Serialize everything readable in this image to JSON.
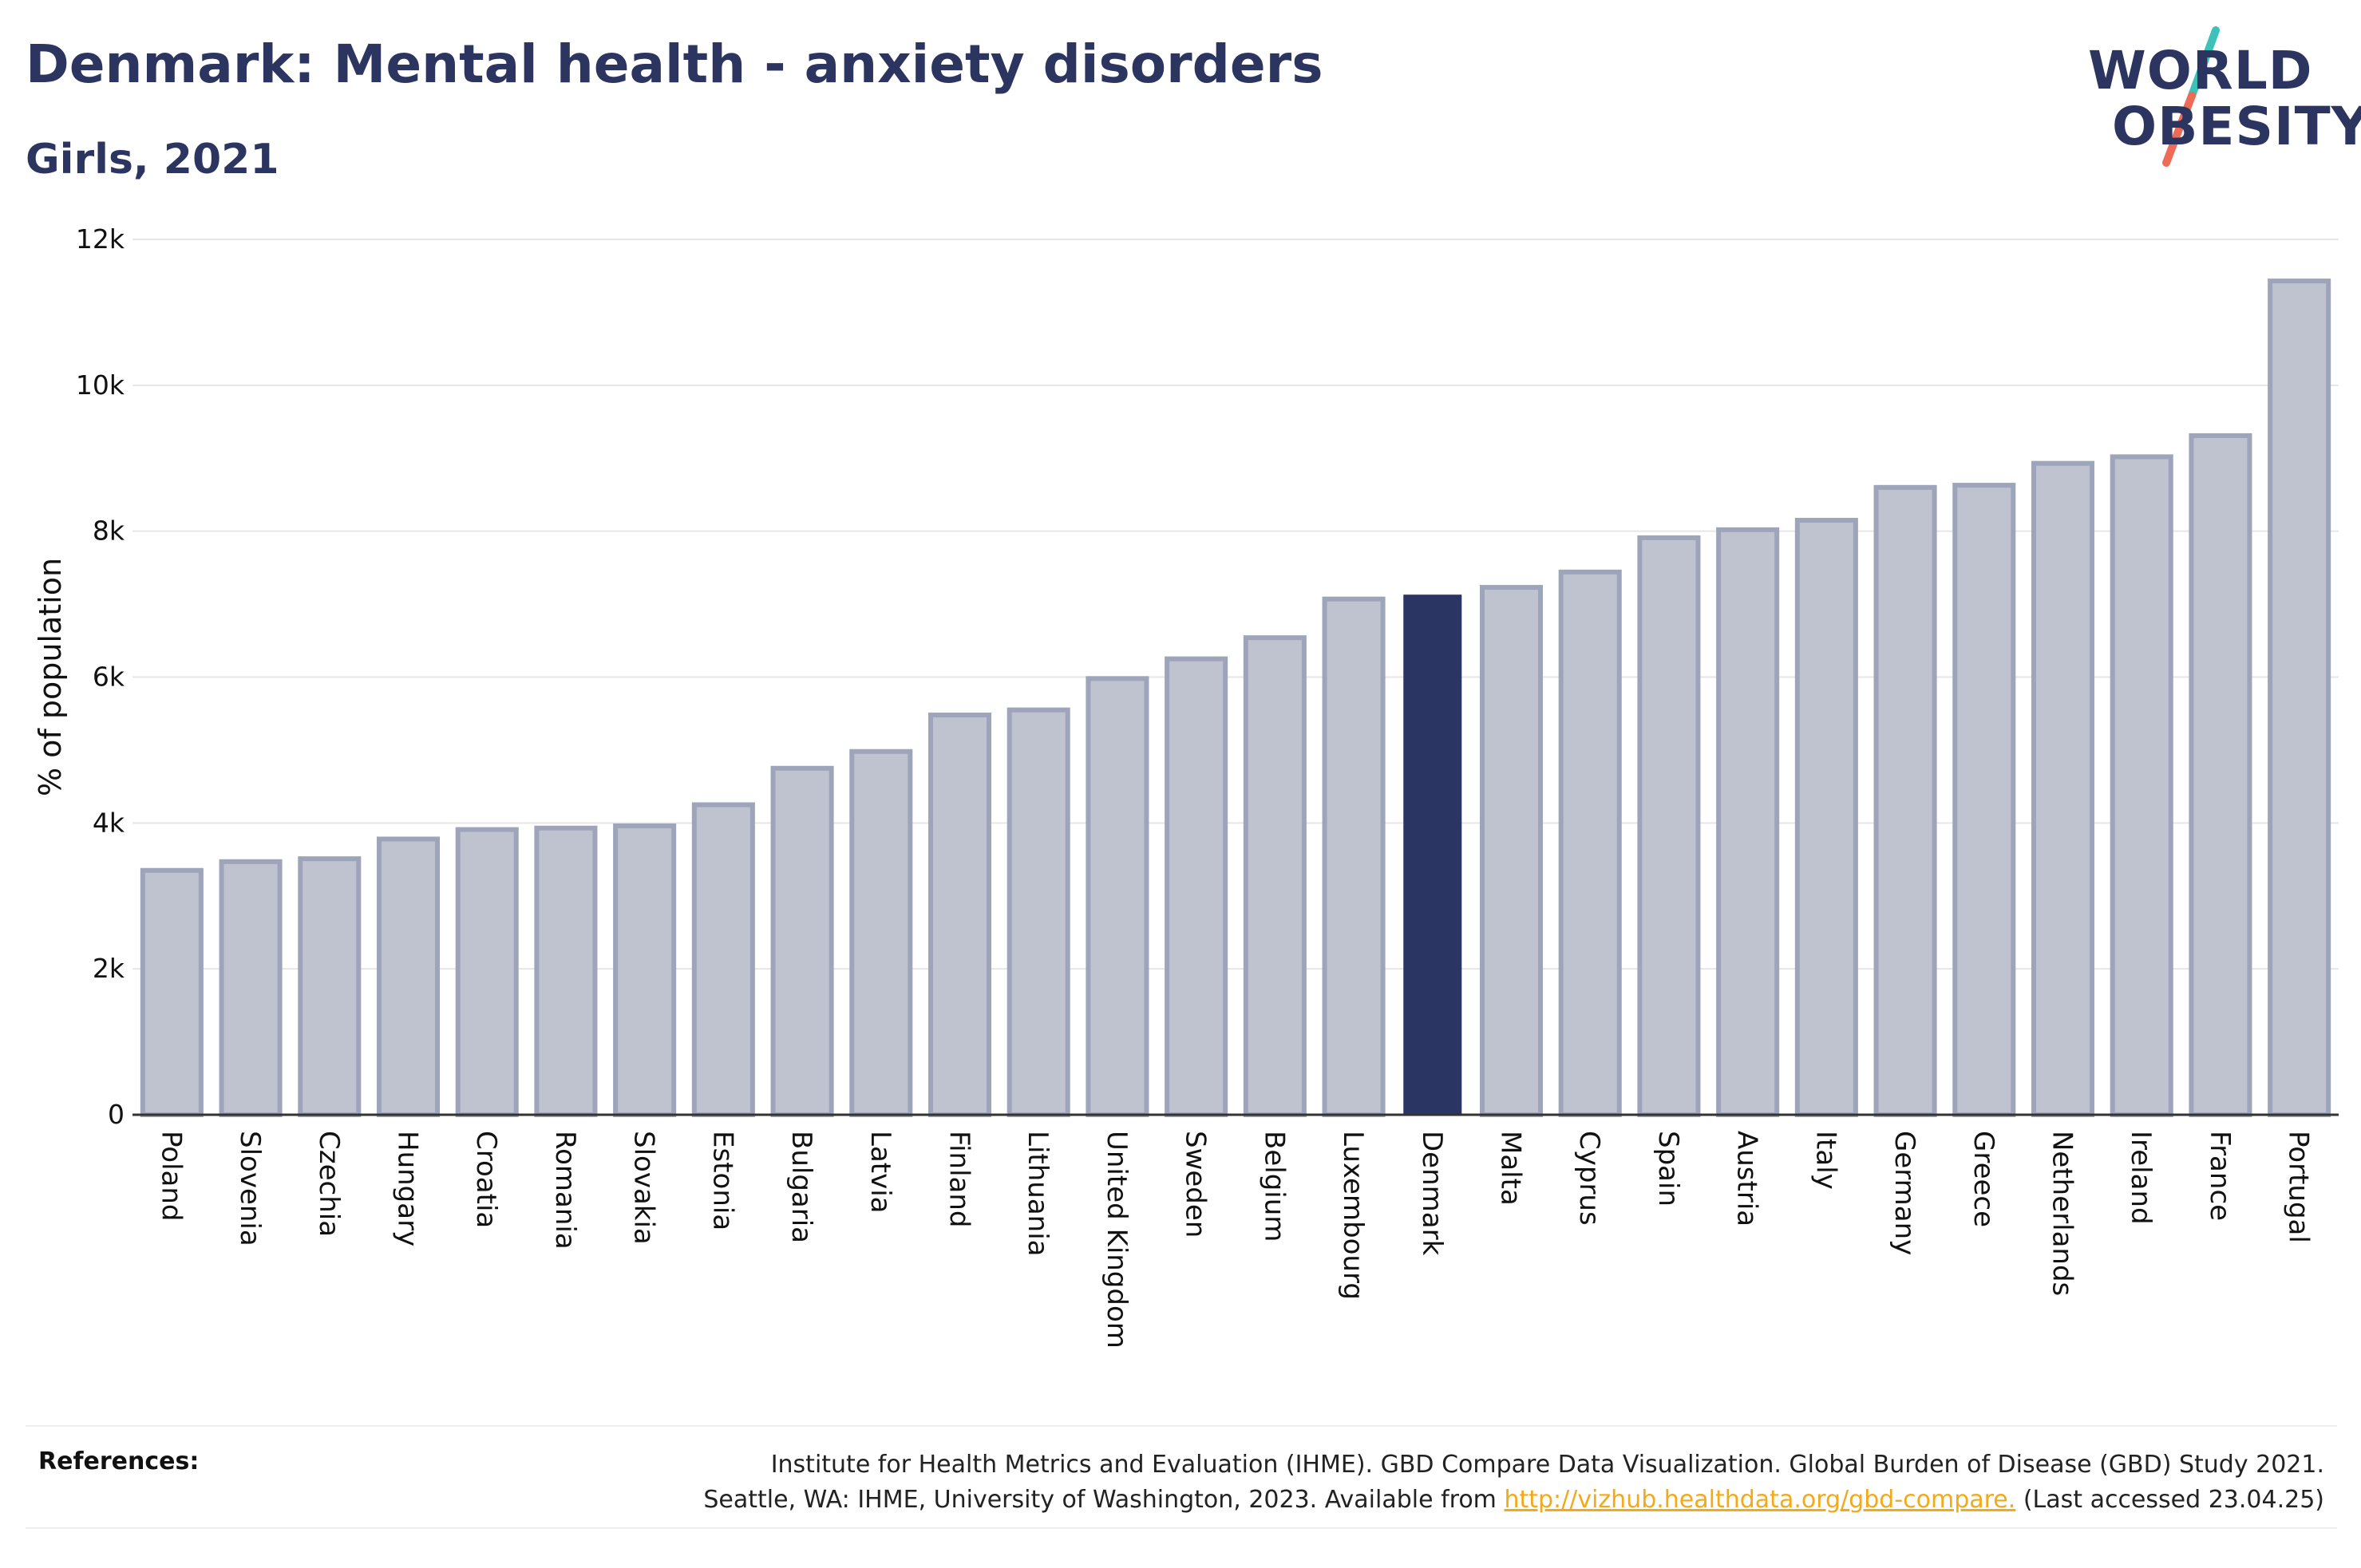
{
  "header": {
    "title": "Denmark: Mental health - anxiety disorders",
    "subtitle": "Girls, 2021"
  },
  "logo": {
    "line1": "WORLD",
    "line2": "OBESITY",
    "slash_colors": [
      "#3ec1b8",
      "#ee6b58"
    ]
  },
  "chart_data": {
    "type": "bar",
    "title": "Denmark: Mental health - anxiety disorders",
    "subtitle": "Girls, 2021",
    "xlabel": "",
    "ylabel": "% of population",
    "ylim": [
      0,
      12000
    ],
    "yticks": [
      0,
      2000,
      4000,
      6000,
      8000,
      10000,
      12000
    ],
    "ytick_labels": [
      "0",
      "2k",
      "4k",
      "6k",
      "8k",
      "10k",
      "12k"
    ],
    "grid": "horizontal",
    "highlight": "Denmark",
    "colors": {
      "bar": "#bfc2cf",
      "bar_edge": "#9ea4ba",
      "highlight": "#2a3563",
      "grid": "#e6e6e6",
      "axis": "#333333"
    },
    "categories": [
      "Poland",
      "Slovenia",
      "Czechia",
      "Hungary",
      "Croatia",
      "Romania",
      "Slovakia",
      "Estonia",
      "Bulgaria",
      "Latvia",
      "Finland",
      "Lithuania",
      "United Kingdom",
      "Sweden",
      "Belgium",
      "Luxembourg",
      "Denmark",
      "Malta",
      "Cyprus",
      "Spain",
      "Austria",
      "Italy",
      "Germany",
      "Greece",
      "Netherlands",
      "Ireland",
      "France",
      "Portugal"
    ],
    "values": [
      3350,
      3470,
      3510,
      3780,
      3910,
      3930,
      3960,
      4250,
      4750,
      4980,
      5480,
      5550,
      5980,
      6250,
      6540,
      7070,
      7130,
      7230,
      7440,
      7910,
      8020,
      8150,
      8600,
      8630,
      8930,
      9020,
      9310,
      11430
    ]
  },
  "references": {
    "label": "References:",
    "line1": "Institute for Health Metrics and Evaluation (IHME). GBD Compare Data Visualization. Global Burden of Disease (GBD) Study 2021.",
    "line2_before": "Seattle, WA: IHME, University of Washington, 2023. Available from ",
    "link": "http://vizhub.healthdata.org/gbd-compare.",
    "line2_after": " (Last accessed 23.04.25)"
  }
}
